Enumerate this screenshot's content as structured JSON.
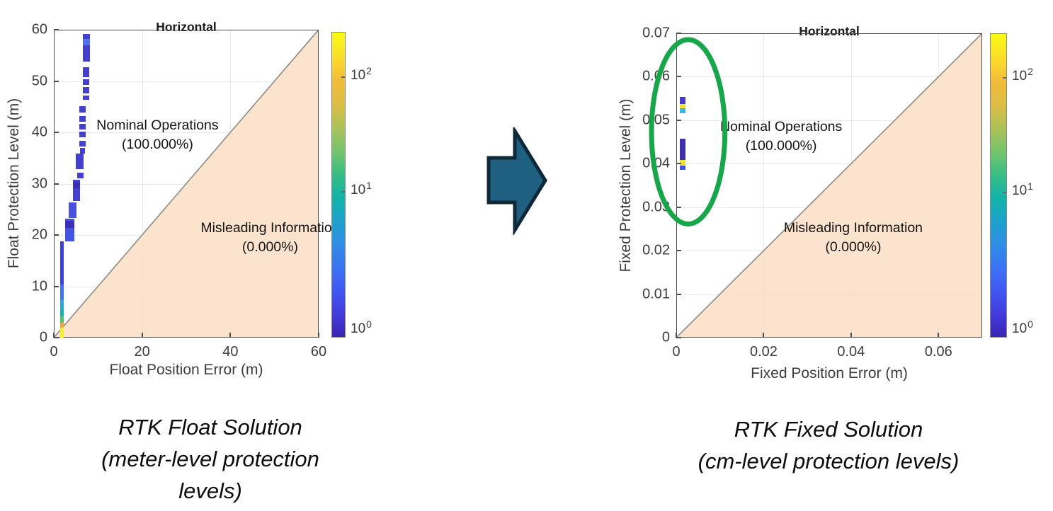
{
  "figure": {
    "background": "#ffffff"
  },
  "chart_data": [
    {
      "type": "heatmap",
      "title": "Horizontal",
      "xlabel": "Float Position Error (m)",
      "ylabel": "Float Protection Level (m)",
      "xlim": [
        0,
        60
      ],
      "ylim": [
        0,
        60
      ],
      "xticks": [
        {
          "v": 0,
          "l": "0"
        },
        {
          "v": 20,
          "l": "20"
        },
        {
          "v": 40,
          "l": "40"
        },
        {
          "v": 60,
          "l": "60"
        }
      ],
      "yticks": [
        {
          "v": 0,
          "l": "0"
        },
        {
          "v": 10,
          "l": "10"
        },
        {
          "v": 20,
          "l": "20"
        },
        {
          "v": 30,
          "l": "30"
        },
        {
          "v": 40,
          "l": "40"
        },
        {
          "v": 50,
          "l": "50"
        },
        {
          "v": 60,
          "l": "60"
        }
      ],
      "grid": true,
      "diagonal_region": {
        "fill": "#fbdec4",
        "line_color": "#8b8b83"
      },
      "annotations": [
        {
          "lines": [
            "Nominal Operations",
            "(100.000%)"
          ],
          "x": 23.5,
          "y": 39.5
        },
        {
          "lines": [
            "Misleading Information",
            "(0.000%)"
          ],
          "x": 49.0,
          "y": 19.5
        }
      ],
      "colorbar": {
        "scale": "log",
        "labels": [
          {
            "base": "10",
            "exp": "2",
            "pos": 0.145
          },
          {
            "base": "10",
            "exp": "1",
            "pos": 0.52
          },
          {
            "base": "10",
            "exp": "0",
            "pos": 0.975
          }
        ]
      },
      "bins": [
        {
          "x": 6.5,
          "y": 53.8,
          "w": 1.7,
          "h": 5.4,
          "c": "#4440cf"
        },
        {
          "x": 6.5,
          "y": 56.9,
          "w": 1.7,
          "h": 1.3,
          "c": "#4f71ea"
        },
        {
          "x": 6.6,
          "y": 50.8,
          "w": 1.4,
          "h": 1.9,
          "c": "#4440cf"
        },
        {
          "x": 6.6,
          "y": 49.3,
          "w": 1.4,
          "h": 1.0,
          "c": "#4440cf"
        },
        {
          "x": 6.6,
          "y": 47.6,
          "w": 1.4,
          "h": 1.2,
          "c": "#4440cf"
        },
        {
          "x": 6.6,
          "y": 46.3,
          "w": 1.4,
          "h": 0.9,
          "c": "#4440cf"
        },
        {
          "x": 5.8,
          "y": 43.9,
          "w": 1.4,
          "h": 1.2,
          "c": "#4440cf"
        },
        {
          "x": 5.8,
          "y": 42.1,
          "w": 1.4,
          "h": 1.1,
          "c": "#4440cf"
        },
        {
          "x": 5.8,
          "y": 40.5,
          "w": 1.4,
          "h": 1.2,
          "c": "#4440cf"
        },
        {
          "x": 5.8,
          "y": 39.0,
          "w": 1.4,
          "h": 1.1,
          "c": "#4440cf"
        },
        {
          "x": 5.8,
          "y": 37.3,
          "w": 1.4,
          "h": 1.1,
          "c": "#4440cf"
        },
        {
          "x": 5.9,
          "y": 35.9,
          "w": 1.2,
          "h": 1.0,
          "c": "#4440cf"
        },
        {
          "x": 5.0,
          "y": 32.8,
          "w": 1.7,
          "h": 3.0,
          "c": "#4440cf"
        },
        {
          "x": 5.3,
          "y": 31.1,
          "w": 1.4,
          "h": 1.1,
          "c": "#4440cf"
        },
        {
          "x": 4.3,
          "y": 26.6,
          "w": 1.6,
          "h": 4.2,
          "c": "#4440cf"
        },
        {
          "x": 4.3,
          "y": 29.1,
          "w": 1.6,
          "h": 1.3,
          "c": "#3b2fb8"
        },
        {
          "x": 3.4,
          "y": 23.3,
          "w": 1.7,
          "h": 3.1,
          "c": "#4a52dd"
        },
        {
          "x": 2.6,
          "y": 18.7,
          "w": 2.0,
          "h": 4.5,
          "c": "#4553e2"
        },
        {
          "x": 2.6,
          "y": 21.4,
          "w": 2.0,
          "h": 1.3,
          "c": "#3b2fb8"
        },
        {
          "x": 1.5,
          "y": 10.4,
          "w": 0.8,
          "h": 8.3,
          "c": "#3c41d9"
        },
        {
          "x": 1.5,
          "y": 7.4,
          "w": 0.8,
          "h": 3.0,
          "c": "#3f74ee"
        },
        {
          "x": 1.5,
          "y": 5.4,
          "w": 0.8,
          "h": 2.0,
          "c": "#2aa7db"
        },
        {
          "x": 1.5,
          "y": 4.1,
          "w": 0.8,
          "h": 1.3,
          "c": "#15b5ab"
        },
        {
          "x": 1.5,
          "y": 2.9,
          "w": 0.8,
          "h": 1.2,
          "c": "#55c06e"
        },
        {
          "x": 1.5,
          "y": 1.9,
          "w": 0.8,
          "h": 1.0,
          "c": "#f0a93c"
        },
        {
          "x": 1.5,
          "y": 0.0,
          "w": 0.8,
          "h": 1.9,
          "c": "#f2ee33"
        }
      ]
    },
    {
      "type": "heatmap",
      "title": "Horizontal",
      "xlabel": "Fixed Position Error (m)",
      "ylabel": "Fixed Protection Level (m)",
      "xlim": [
        0,
        0.07
      ],
      "ylim": [
        0,
        0.07
      ],
      "xticks": [
        {
          "v": 0,
          "l": "0"
        },
        {
          "v": 0.02,
          "l": "0.02"
        },
        {
          "v": 0.04,
          "l": "0.04"
        },
        {
          "v": 0.06,
          "l": "0.06"
        }
      ],
      "yticks": [
        {
          "v": 0,
          "l": "0"
        },
        {
          "v": 0.01,
          "l": "0.01"
        },
        {
          "v": 0.02,
          "l": "0.02"
        },
        {
          "v": 0.03,
          "l": "0.03"
        },
        {
          "v": 0.04,
          "l": "0.04"
        },
        {
          "v": 0.05,
          "l": "0.05"
        },
        {
          "v": 0.06,
          "l": "0.06"
        },
        {
          "v": 0.07,
          "l": "0.07"
        }
      ],
      "grid": true,
      "diagonal_region": {
        "fill": "#fbdec4",
        "line_color": "#8b8b83"
      },
      "annotations": [
        {
          "lines": [
            "Nominal Operations",
            "(100.000%)"
          ],
          "x": 0.024,
          "y": 0.0462
        },
        {
          "lines": [
            "Misleading Information",
            "(0.000%)"
          ],
          "x": 0.0405,
          "y": 0.023
        }
      ],
      "colorbar": {
        "scale": "log",
        "labels": [
          {
            "base": "10",
            "exp": "2",
            "pos": 0.145
          },
          {
            "base": "10",
            "exp": "1",
            "pos": 0.52
          },
          {
            "base": "10",
            "exp": "0",
            "pos": 0.975
          }
        ]
      },
      "highlight_ellipse": {
        "cx": 0.00275,
        "cy": 0.0474,
        "rx": 0.0084,
        "ry": 0.0212,
        "color": "#17a74a"
      },
      "bins": [
        {
          "x": 0.0008,
          "y": 0.0538,
          "w": 0.0013,
          "h": 0.0015,
          "c": "#453bc8"
        },
        {
          "x": 0.0008,
          "y": 0.0528,
          "w": 0.0013,
          "h": 0.001,
          "c": "#ece431"
        },
        {
          "x": 0.0008,
          "y": 0.0516,
          "w": 0.0013,
          "h": 0.0012,
          "c": "#3fb4dc"
        },
        {
          "x": 0.0008,
          "y": 0.0408,
          "w": 0.0013,
          "h": 0.0049,
          "c": "#3f2fae"
        },
        {
          "x": 0.0008,
          "y": 0.0396,
          "w": 0.0013,
          "h": 0.0012,
          "c": "#eee334"
        },
        {
          "x": 0.0008,
          "y": 0.0386,
          "w": 0.0013,
          "h": 0.001,
          "c": "#3f55e0"
        }
      ]
    }
  ],
  "captions": [
    {
      "lines": [
        "RTK Float Solution",
        "(meter-level protection",
        "levels)"
      ]
    },
    {
      "lines": [
        "RTK Fixed Solution",
        "(cm-level protection levels)"
      ]
    }
  ],
  "arrow": {
    "fill": "#1f6080",
    "stroke": "#0f2838"
  }
}
